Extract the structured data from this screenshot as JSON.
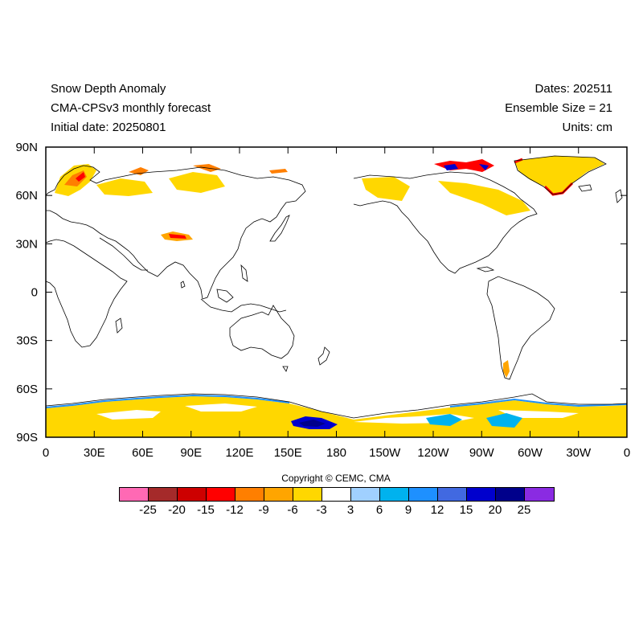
{
  "header": {
    "title": "Snow Depth Anomaly",
    "subtitle": "CMA-CPSv3 monthly forecast",
    "initial_date": "Initial date: 20250801",
    "dates": "Dates: 202511",
    "ensemble": "Ensemble Size = 21",
    "units": "Units: cm"
  },
  "axes": {
    "lat_labels": [
      "90N",
      "60N",
      "30N",
      "0",
      "30S",
      "60S",
      "90S"
    ],
    "lon_labels": [
      "0",
      "30E",
      "60E",
      "90E",
      "120E",
      "150E",
      "180",
      "150W",
      "120W",
      "90W",
      "60W",
      "30W",
      "0"
    ]
  },
  "copyright": "Copyright © CEMC, CMA",
  "colorbar": {
    "colors": [
      "#ff69b4",
      "#a52a2a",
      "#cd0000",
      "#ff0000",
      "#ff7f00",
      "#ffa500",
      "#ffd700",
      "#ffffff",
      "#a0d0ff",
      "#00b2ee",
      "#1e90ff",
      "#4169e1",
      "#0000cd",
      "#00008b",
      "#8a2be2"
    ],
    "labels": [
      "-25",
      "-20",
      "-15",
      "-12",
      "-9",
      "-6",
      "-3",
      "3",
      "6",
      "9",
      "12",
      "15",
      "20",
      "25"
    ]
  }
}
